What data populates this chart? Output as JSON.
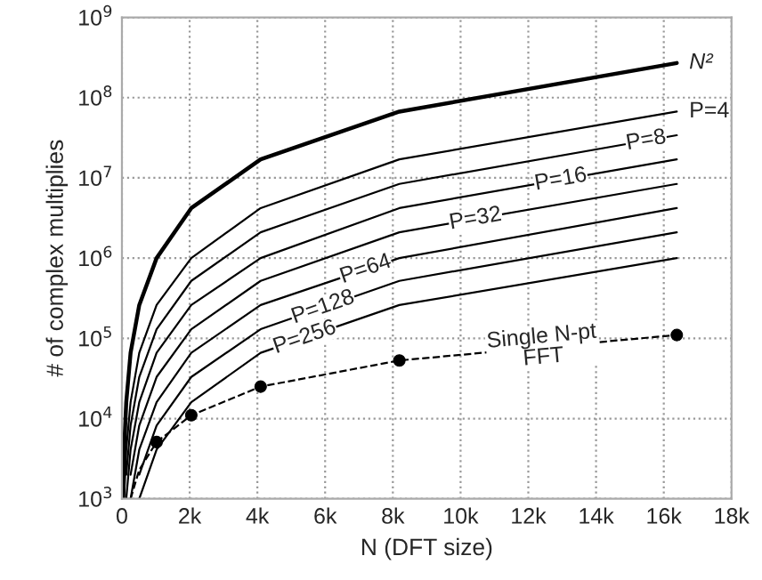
{
  "chart_data": {
    "type": "line",
    "xlabel": "N (DFT size)",
    "ylabel": "# of complex multiplies",
    "log": "y",
    "grid": true,
    "xlim": [
      0,
      18000
    ],
    "xticks": [
      0,
      {
        "value": 2000,
        "label": "2k"
      },
      {
        "value": 4000,
        "label": "4k"
      },
      {
        "value": 6000,
        "label": "6k"
      },
      {
        "value": 8000,
        "label": "8k"
      },
      {
        "value": 10000,
        "label": "10k"
      },
      {
        "value": 12000,
        "label": "12k"
      },
      {
        "value": 14000,
        "label": "14k"
      },
      {
        "value": 16000,
        "label": "16k"
      },
      {
        "value": 18000,
        "label": "18k"
      }
    ],
    "ylim": [
      1000,
      1000000000
    ],
    "yticks": [
      {
        "value": 1000,
        "label": "10$^{3}$"
      },
      {
        "value": 10000,
        "label": "10$^{4}$"
      },
      {
        "value": 100000,
        "label": "10$^{5}$"
      },
      {
        "value": 1000000,
        "label": "10$^{6}$"
      },
      {
        "value": 10000000,
        "label": "10$^{7}$"
      },
      {
        "value": 100000000,
        "label": "10$^{8}$"
      },
      {
        "value": 1000000000,
        "label": "10$^{9}$"
      }
    ],
    "series": [
      {
        "name": "N²",
        "color": "#000000",
        "x": [
          32,
          64,
          128,
          256,
          512,
          1024,
          2048,
          4096,
          8192,
          16384
        ],
        "values": [
          1000,
          4100,
          16000,
          66000,
          260000,
          1000000,
          4200000,
          17000000,
          67000000,
          270000000
        ]
      },
      {
        "name": "P=4",
        "color": "#000000",
        "x": [
          64,
          128,
          256,
          512,
          1024,
          2048,
          4096,
          8192,
          16384
        ],
        "values": [
          1000,
          4100,
          16000,
          66000,
          260000,
          1000000,
          4200000,
          17000000,
          67000000
        ]
      },
      {
        "name": "P=8",
        "color": "#000000",
        "x": [
          128,
          256,
          512,
          1024,
          2048,
          4096,
          8192,
          16384
        ],
        "values": [
          2000,
          8200,
          33000,
          130000,
          520000,
          2100000,
          8400000,
          34000000
        ]
      },
      {
        "name": "P=16",
        "color": "#000000",
        "x": [
          128,
          256,
          512,
          1024,
          2048,
          4096,
          8192,
          16384
        ],
        "values": [
          1000,
          4100,
          16000,
          66000,
          260000,
          1000000,
          4200000,
          17000000
        ]
      },
      {
        "name": "P=32",
        "color": "#000000",
        "x": [
          256,
          512,
          1024,
          2048,
          4096,
          8192,
          16384
        ],
        "values": [
          2000,
          8200,
          33000,
          130000,
          520000,
          2100000,
          8400000
        ]
      },
      {
        "name": "P=64",
        "color": "#000000",
        "x": [
          256,
          512,
          1024,
          2048,
          4096,
          8192,
          16384
        ],
        "values": [
          1000,
          4100,
          16000,
          66000,
          260000,
          1000000,
          4200000
        ]
      },
      {
        "name": "P=128",
        "color": "#000000",
        "x": [
          512,
          1024,
          2048,
          4096,
          8192,
          16384
        ],
        "values": [
          2000,
          8200,
          33000,
          130000,
          520000,
          2100000
        ]
      },
      {
        "name": "P=256",
        "color": "#000000",
        "x": [
          512,
          1024,
          2048,
          4096,
          8192,
          16384
        ],
        "values": [
          1000,
          4100,
          16000,
          66000,
          260000,
          1000000
        ]
      },
      {
        "name": "Single N-pt FFT",
        "color": "#000000",
        "line_style": "dashed",
        "x": [
          256,
          512,
          1024,
          2048,
          4096,
          8192,
          16384
        ],
        "values": [
          1000,
          2300,
          5100,
          11000,
          25000,
          53000,
          110000
        ]
      },
      {
        "type": "scatter",
        "color": "#000000",
        "marker": "circle",
        "x": [
          1024,
          2048,
          4096,
          8192,
          16384
        ],
        "values": [
          5100,
          11000,
          25000,
          53000,
          110000
        ]
      }
    ]
  }
}
